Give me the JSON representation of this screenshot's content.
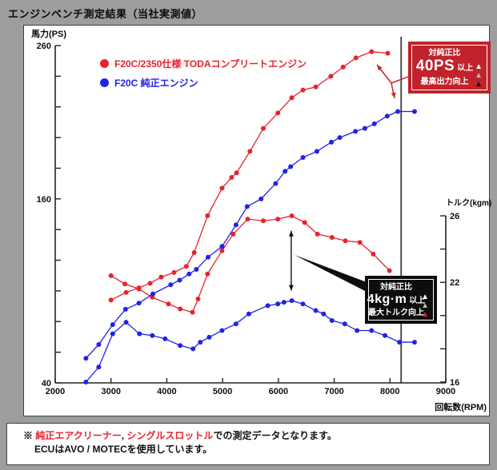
{
  "title": "エンジンベンチ測定結果（当社実測値）",
  "colors": {
    "background": "#9d9d9d",
    "panel": "#ffffff",
    "axis": "#222222",
    "red": "#e8232d",
    "blue": "#2122e8",
    "power_box_bg": "#c0232b",
    "torque_box_bg": "#0d0d0d",
    "marker_line": "#3c3c3c"
  },
  "legend": [
    {
      "label": "F20C/2350仕様 TODAコンプリートエンジン",
      "color": "#e8232d"
    },
    {
      "label": "F20C 純正エンジン",
      "color": "#2122e8"
    }
  ],
  "axes": {
    "y_left_title": "馬力(PS)",
    "y_right_title": "トルク(kgm)",
    "x_title": "回転数(RPM)"
  },
  "chart_data": {
    "type": "line",
    "title": "エンジンベンチ測定結果（当社実測値）",
    "x_axis": {
      "label": "回転数(RPM)",
      "min": 2000,
      "max": 9000,
      "tick_step": 1000
    },
    "y_left_axis": {
      "label": "馬力(PS)",
      "min": 40,
      "max": 260,
      "tick_step": 20,
      "labeled_ticks": [
        260,
        160,
        40
      ]
    },
    "y_right_axis": {
      "label": "トルク(kgm)",
      "min": 16,
      "max": 26,
      "tick_step": 2,
      "labeled_ticks": [
        26,
        22,
        16
      ]
    },
    "grid": false,
    "series": [
      {
        "id": "toda-power",
        "name": "F20C/2350 TODA 馬力(PS)",
        "axis": "left",
        "color": "#e8232d",
        "points": [
          [
            3000,
            94
          ],
          [
            3270,
            99
          ],
          [
            3500,
            102
          ],
          [
            3700,
            105
          ],
          [
            3900,
            109
          ],
          [
            4130,
            112
          ],
          [
            4350,
            116
          ],
          [
            4490,
            125
          ],
          [
            4730,
            149
          ],
          [
            4990,
            167
          ],
          [
            5160,
            174
          ],
          [
            5250,
            177
          ],
          [
            5490,
            191
          ],
          [
            5730,
            206
          ],
          [
            5990,
            216
          ],
          [
            6240,
            226
          ],
          [
            6440,
            231
          ],
          [
            6670,
            233
          ],
          [
            6940,
            240
          ],
          [
            7160,
            246
          ],
          [
            7390,
            252
          ],
          [
            7670,
            256
          ],
          [
            7960,
            255
          ]
        ]
      },
      {
        "id": "toda-torque",
        "name": "F20C/2350 TODA トルク(kgm)",
        "axis": "right",
        "color": "#e8232d",
        "points": [
          [
            3000,
            22.4
          ],
          [
            3250,
            21.9
          ],
          [
            3500,
            21.6
          ],
          [
            3740,
            21.1
          ],
          [
            4030,
            20.7
          ],
          [
            4240,
            20.4
          ],
          [
            4460,
            20.2
          ],
          [
            4560,
            21.0
          ],
          [
            4730,
            22.5
          ],
          [
            4990,
            23.9
          ],
          [
            5190,
            24.9
          ],
          [
            5450,
            25.8
          ],
          [
            5730,
            25.7
          ],
          [
            5990,
            25.8
          ],
          [
            6240,
            26.0
          ],
          [
            6470,
            25.6
          ],
          [
            6700,
            24.9
          ],
          [
            6960,
            24.7
          ],
          [
            7200,
            24.5
          ],
          [
            7460,
            24.4
          ],
          [
            7700,
            23.7
          ],
          [
            7990,
            22.7
          ]
        ]
      },
      {
        "id": "stock-power",
        "name": "F20C 純正 馬力(PS)",
        "axis": "left",
        "color": "#2122e8",
        "points": [
          [
            2550,
            56
          ],
          [
            2780,
            65
          ],
          [
            3030,
            78
          ],
          [
            3260,
            88
          ],
          [
            3500,
            92
          ],
          [
            3750,
            98
          ],
          [
            4070,
            104
          ],
          [
            4230,
            107
          ],
          [
            4400,
            111
          ],
          [
            4530,
            114
          ],
          [
            4740,
            122
          ],
          [
            4990,
            129
          ],
          [
            5240,
            143
          ],
          [
            5440,
            155
          ],
          [
            5690,
            160
          ],
          [
            5950,
            170
          ],
          [
            6120,
            178
          ],
          [
            6220,
            181
          ],
          [
            6440,
            187
          ],
          [
            6690,
            191
          ],
          [
            6950,
            197
          ],
          [
            7100,
            200
          ],
          [
            7380,
            204
          ],
          [
            7550,
            206
          ],
          [
            7720,
            209
          ],
          [
            7950,
            214
          ],
          [
            8140,
            217
          ],
          [
            8440,
            217
          ]
        ]
      },
      {
        "id": "stock-torque",
        "name": "F20C 純正 トルク(kgm)",
        "axis": "right",
        "color": "#2122e8",
        "points": [
          [
            2550,
            16.0
          ],
          [
            2780,
            16.9
          ],
          [
            3030,
            18.9
          ],
          [
            3270,
            19.6
          ],
          [
            3510,
            18.9
          ],
          [
            3740,
            18.8
          ],
          [
            3970,
            18.6
          ],
          [
            4240,
            18.2
          ],
          [
            4470,
            18.0
          ],
          [
            4600,
            18.4
          ],
          [
            4760,
            18.7
          ],
          [
            4990,
            19.1
          ],
          [
            5240,
            19.5
          ],
          [
            5470,
            20.1
          ],
          [
            5810,
            20.6
          ],
          [
            5990,
            20.7
          ],
          [
            6100,
            20.8
          ],
          [
            6240,
            20.9
          ],
          [
            6440,
            20.7
          ],
          [
            6670,
            20.3
          ],
          [
            6810,
            20.1
          ],
          [
            6960,
            19.7
          ],
          [
            7190,
            19.5
          ],
          [
            7410,
            19.1
          ],
          [
            7670,
            19.1
          ],
          [
            7910,
            18.8
          ],
          [
            8170,
            18.4
          ],
          [
            8440,
            18.4
          ]
        ]
      }
    ],
    "annotations": {
      "peak_marker_rpm": 8200,
      "torque_diff_arrow": {
        "rpm": 6230,
        "from": 21.5,
        "to": 25.1
      }
    }
  },
  "power_box": {
    "line1": "対純正比",
    "value": "40PS",
    "unit": "以上",
    "line3": "最高出力向上",
    "triangles": [
      "#ffffff",
      "#b9b9b9",
      "#111111"
    ]
  },
  "torque_box": {
    "line1": "対純正比",
    "value": "4kg·m",
    "unit": "以上",
    "line3": "最大トルク向上",
    "triangles": [
      "#ffffff",
      "#b9b9b9",
      "#e8232d"
    ]
  },
  "footer": {
    "mark": "※ ",
    "red1": "純正エアクリーナー",
    "sep": ", ",
    "red2": "シングルスロットル",
    "rest": "での測定データとなります。",
    "line2": "ECUはAVO / MOTECを使用しています。"
  }
}
